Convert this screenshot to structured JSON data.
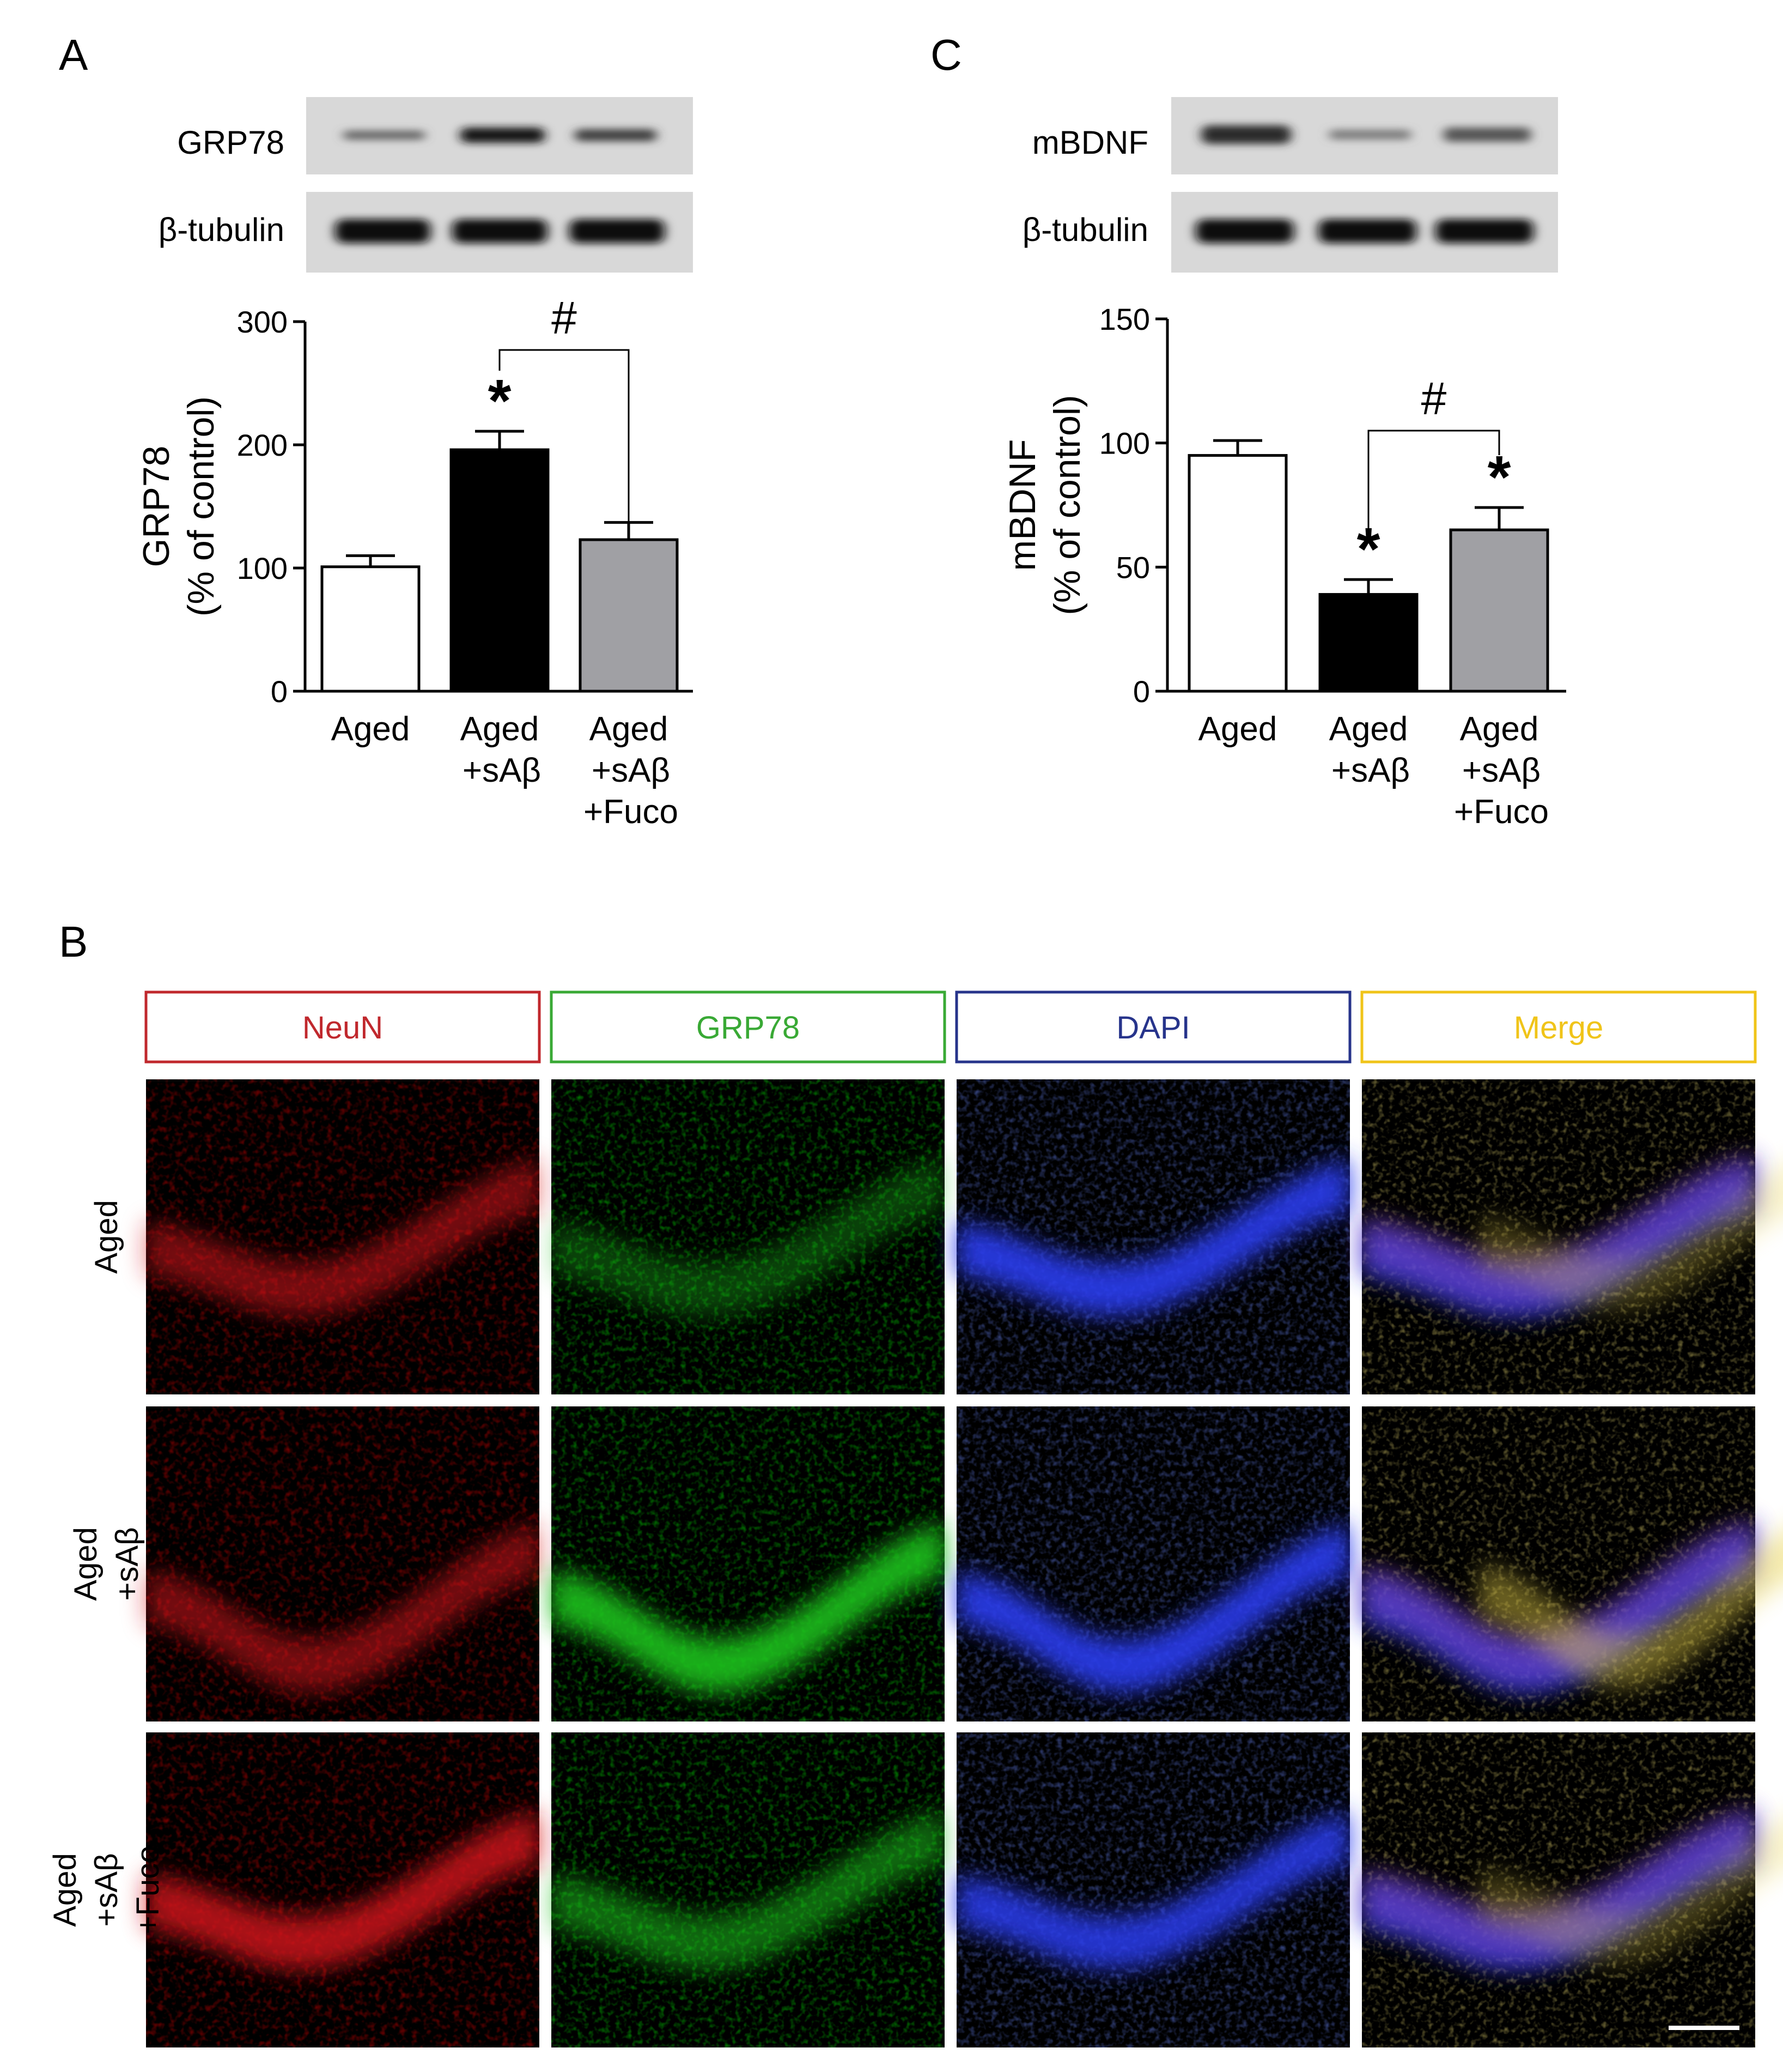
{
  "panels": {
    "A": "A",
    "B": "B",
    "C": "C"
  },
  "blots": {
    "A": {
      "top_label": "GRP78",
      "bottom_label": "β-tubulin"
    },
    "C": {
      "top_label": "mBDNF",
      "bottom_label": "β-tubulin"
    }
  },
  "chart_data": [
    {
      "panel": "A",
      "type": "bar",
      "categories": [
        [
          "Aged"
        ],
        [
          "Aged",
          "+sAβ"
        ],
        [
          "Aged",
          "+sAβ",
          "+Fuco"
        ]
      ],
      "values": [
        101,
        196,
        123
      ],
      "errors": [
        9,
        15,
        14
      ],
      "bar_colors": [
        "#ffffff",
        "#000000",
        "#a0a0a4"
      ],
      "ylabel": [
        "GRP78",
        "(% of control)"
      ],
      "ylim": [
        0,
        300
      ],
      "yticks": [
        0,
        100,
        200,
        300
      ],
      "significance": [
        {
          "bar": 1,
          "symbol": "*"
        }
      ],
      "brackets": [
        {
          "from": 1,
          "to": 2,
          "symbol": "#"
        }
      ]
    },
    {
      "panel": "C",
      "type": "bar",
      "categories": [
        [
          "Aged"
        ],
        [
          "Aged",
          "+sAβ"
        ],
        [
          "Aged",
          "+sAβ",
          "+Fuco"
        ]
      ],
      "values": [
        95,
        39,
        65
      ],
      "errors": [
        6,
        6,
        9
      ],
      "bar_colors": [
        "#ffffff",
        "#000000",
        "#a0a0a4"
      ],
      "ylabel": [
        "mBDNF",
        "(% of control)"
      ],
      "ylim": [
        0,
        150
      ],
      "yticks": [
        0,
        50,
        100,
        150
      ],
      "significance": [
        {
          "bar": 1,
          "symbol": "*"
        },
        {
          "bar": 2,
          "symbol": "*"
        }
      ],
      "brackets": [
        {
          "from": 1,
          "to": 2,
          "symbol": "#"
        }
      ]
    }
  ],
  "micrographs": {
    "channels": [
      {
        "label": "NeuN",
        "color": "#c0282d"
      },
      {
        "label": "GRP78",
        "color": "#39a935"
      },
      {
        "label": "DAPI",
        "color": "#27348b"
      },
      {
        "label": "Merge",
        "color": "#f0c419"
      }
    ],
    "rows": [
      [
        "Aged"
      ],
      [
        "Aged",
        "+sAβ"
      ],
      [
        "Aged",
        "+sAβ",
        "+Fuco"
      ]
    ],
    "row_intensity": [
      {
        "neun": 0.55,
        "grp78": 0.35,
        "dapi": 0.9
      },
      {
        "neun": 0.55,
        "grp78": 0.9,
        "dapi": 0.9
      },
      {
        "neun": 0.8,
        "grp78": 0.55,
        "dapi": 0.85
      }
    ]
  }
}
